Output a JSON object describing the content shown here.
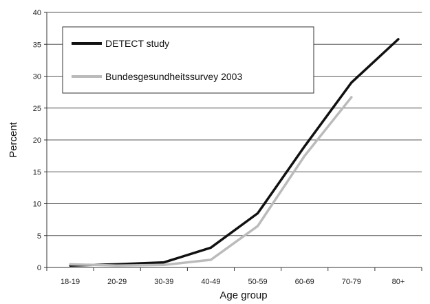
{
  "chart_data": {
    "type": "line",
    "categories": [
      "18-19",
      "20-29",
      "30-39",
      "40-49",
      "50-59",
      "60-69",
      "70-79",
      "80+"
    ],
    "series": [
      {
        "name": "DETECT study",
        "values": [
          0.3,
          0.5,
          0.8,
          3.1,
          8.5,
          19.0,
          29.0,
          35.8
        ],
        "color": "#111111"
      },
      {
        "name": "Bundesgesundheitssurvey 2003",
        "values": [
          0.5,
          0.3,
          0.4,
          1.2,
          6.5,
          17.5,
          26.7,
          null
        ],
        "color": "#bbbbbb"
      }
    ],
    "title": "",
    "xlabel": "Age group",
    "ylabel": "Percent",
    "ylim": [
      0,
      40
    ],
    "yticks": [
      0,
      5,
      10,
      15,
      20,
      25,
      30,
      35,
      40
    ],
    "grid": "horizontal",
    "legend_position": "top-left"
  }
}
